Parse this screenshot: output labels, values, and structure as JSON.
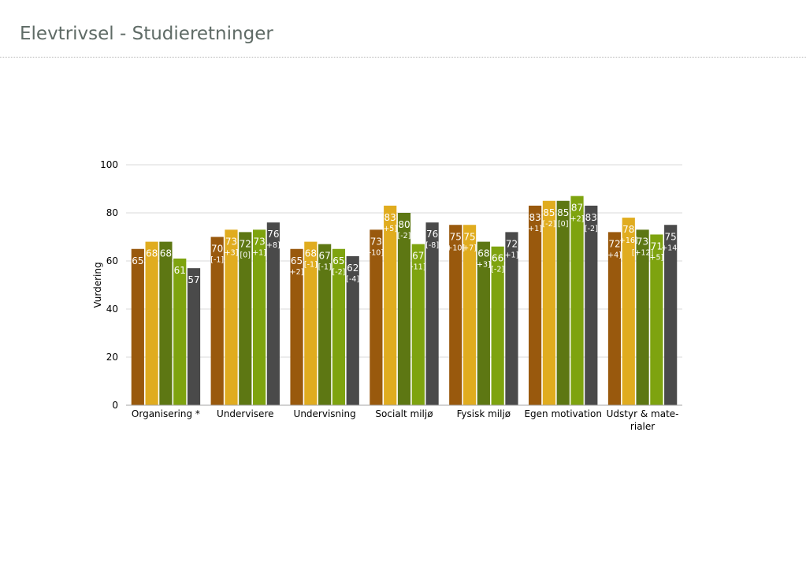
{
  "page": {
    "title": "Elevtrivsel - Studieretninger"
  },
  "chart_data": {
    "type": "bar",
    "ylabel": "Vurdering",
    "ylim": [
      0,
      100
    ],
    "yticks": [
      0,
      20,
      40,
      60,
      80,
      100
    ],
    "grid": true,
    "categories": [
      [
        "Organisering *"
      ],
      [
        "Undervisere"
      ],
      [
        "Undervisning"
      ],
      [
        "Socialt miljø"
      ],
      [
        "Fysisk miljø"
      ],
      [
        "Egen motivation"
      ],
      [
        "Udstyr & mate-",
        "rialer"
      ]
    ],
    "series": [
      {
        "color": "#99590d",
        "values": [
          65,
          70,
          65,
          73,
          75,
          83,
          72
        ],
        "diffs": [
          "",
          "[-1]",
          "+2]",
          "-10]",
          "+10]",
          "+1]",
          "+4]"
        ]
      },
      {
        "color": "#e0ac1f",
        "values": [
          68,
          73,
          68,
          83,
          75,
          85,
          78
        ],
        "diffs": [
          "",
          "+3]",
          "[-1]",
          "+5]",
          "+7]",
          "[-2]",
          "+16]"
        ]
      },
      {
        "color": "#5d7713",
        "values": [
          68,
          72,
          67,
          80,
          68,
          85,
          73
        ],
        "diffs": [
          "",
          "[0]",
          "[-1]",
          "[-2]",
          "+3]",
          "[0]",
          "[+12]"
        ]
      },
      {
        "color": "#7ea30f",
        "values": [
          61,
          73,
          65,
          67,
          66,
          87,
          71
        ],
        "diffs": [
          "",
          "+1]",
          "[-2]",
          "-11]",
          "[-2]",
          "+2]",
          "+5]"
        ]
      },
      {
        "color": "#4a4a4a",
        "values": [
          57,
          76,
          62,
          76,
          72,
          83,
          75
        ],
        "diffs": [
          "",
          "+8]",
          "[-4]",
          "[-8]",
          "+1]",
          "[-2]",
          "+14]"
        ]
      }
    ]
  }
}
